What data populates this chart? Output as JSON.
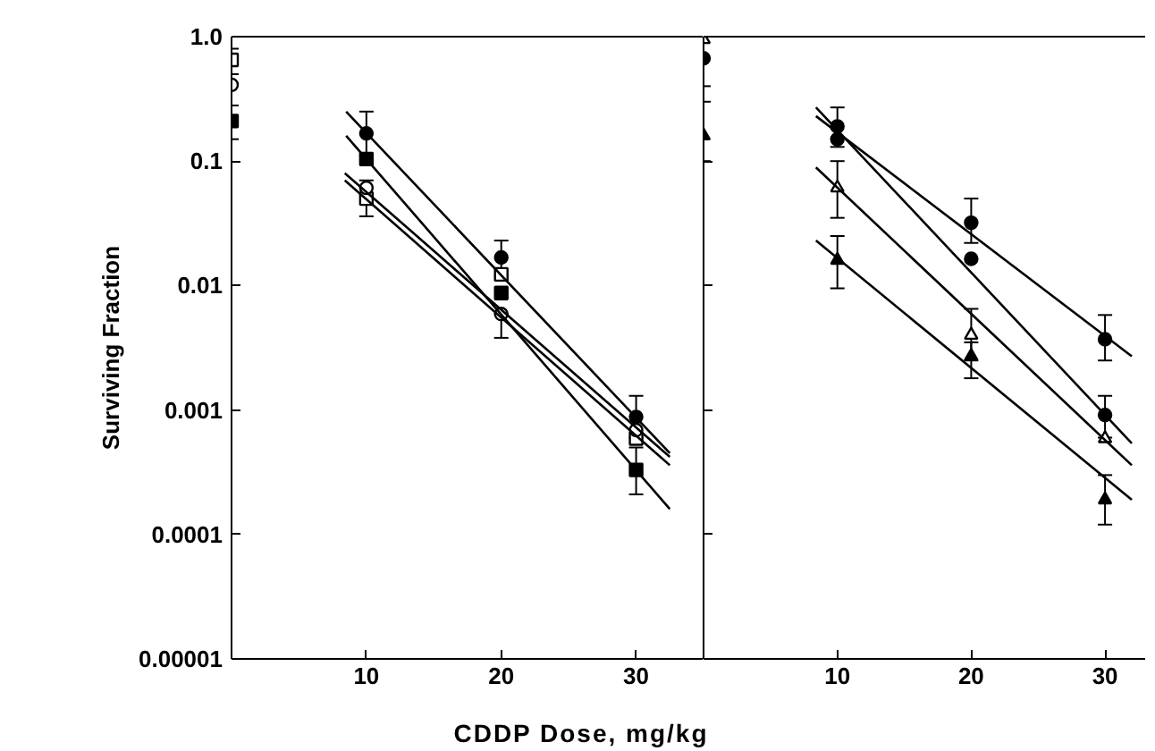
{
  "chart_data": [
    {
      "type": "scatter",
      "ylabel": "Surviving Fraction",
      "xlabel": "CDDP Dose, mg/kg",
      "log": "y",
      "x": [
        0,
        10,
        20,
        30
      ],
      "xlim": [
        0,
        35
      ],
      "xticks": [
        10,
        20,
        30
      ],
      "ylim": [
        1e-05,
        1
      ],
      "yticks": [
        {
          "value": 1,
          "label": "1.0"
        },
        0.1,
        0.01,
        0.001,
        {
          "value": 0.0001,
          "label": "0.0001"
        },
        {
          "value": 1e-05,
          "label": "0.00001"
        }
      ],
      "grid": false,
      "series": [
        {
          "marker": "circle",
          "color": "#000000",
          "values": [
            null,
            0.167,
            0.0168,
            0.00088
          ],
          "errors": [
            null,
            [
              0.11,
              0.25
            ],
            [
              0.012,
              0.023
            ],
            [
              0.0006,
              0.0013
            ]
          ]
        },
        {
          "marker": "square",
          "color": "#000000",
          "values": [
            0.21,
            0.104,
            0.0087,
            0.00033
          ],
          "errors": [
            [
              0.15,
              0.28
            ],
            null,
            null,
            [
              0.00021,
              0.0005
            ]
          ]
        },
        {
          "marker": "square",
          "color": "#ffffff",
          "values": [
            0.65,
            0.05,
            0.0123,
            0.00059
          ],
          "errors": [
            [
              0.5,
              0.8
            ],
            [
              0.036,
              0.07
            ],
            null,
            null
          ]
        },
        {
          "marker": "circle",
          "color": "#ffffff",
          "values": [
            0.41,
            0.061,
            0.0059,
            0.00069
          ],
          "errors": [
            null,
            null,
            [
              0.0038,
              0.0059
            ],
            null
          ]
        },
        {
          "type": "line",
          "color": "#000000",
          "x": [
            8.5,
            32.5
          ],
          "values": [
            0.25,
            0.00045
          ]
        },
        {
          "type": "line",
          "color": "#000000",
          "x": [
            8.5,
            32.5
          ],
          "values": [
            0.16,
            0.00016
          ]
        },
        {
          "type": "line",
          "color": "#000000",
          "x": [
            8.4,
            32.5
          ],
          "values": [
            0.08,
            0.00042
          ]
        },
        {
          "type": "line",
          "color": "#000000",
          "x": [
            8.4,
            32.5
          ],
          "values": [
            0.07,
            0.00036
          ]
        }
      ]
    },
    {
      "type": "scatter",
      "log": "y",
      "x": [
        0,
        10,
        20,
        30
      ],
      "xlim": [
        0,
        33
      ],
      "xticks": [
        10,
        20,
        30
      ],
      "ylim": [
        1e-05,
        1
      ],
      "yticks": [
        1,
        0.1,
        0.01,
        0.001,
        0.0001,
        1e-05
      ],
      "tick_labels": "x",
      "grid": false,
      "series": [
        {
          "marker": "circle",
          "color": "#000000",
          "values": [
            0.67,
            0.19,
            0.0164,
            0.00091
          ],
          "errors": [
            [
              0.4,
              1.0
            ],
            [
              0.13,
              0.27
            ],
            null,
            [
              0.0006,
              0.0013
            ]
          ]
        },
        {
          "marker": "circle",
          "color": "#000000",
          "values": [
            null,
            0.15,
            0.032,
            0.0037
          ],
          "errors": [
            null,
            null,
            [
              0.022,
              0.05
            ],
            [
              0.0025,
              0.0058
            ]
          ]
        },
        {
          "marker": "triangle",
          "color": "#ffffff",
          "values": [
            0.95,
            0.061,
            0.004,
            0.00059
          ],
          "errors": [
            null,
            [
              0.035,
              0.1
            ],
            [
              0.0025,
              0.0065
            ],
            null
          ]
        },
        {
          "marker": "triangle",
          "color": "#000000",
          "values": [
            0.16,
            0.016,
            0.0027,
            0.00019
          ],
          "errors": [
            [
              0.1,
              0.3
            ],
            [
              0.0095,
              0.025
            ],
            [
              0.0018,
              0.0035
            ],
            [
              0.00012,
              0.0003
            ]
          ]
        },
        {
          "type": "line",
          "color": "#000000",
          "x": [
            8.4,
            32
          ],
          "values": [
            0.27,
            0.00054
          ]
        },
        {
          "type": "line",
          "color": "#000000",
          "x": [
            8.4,
            32
          ],
          "values": [
            0.23,
            0.0027
          ]
        },
        {
          "type": "line",
          "color": "#000000",
          "x": [
            8.4,
            32
          ],
          "values": [
            0.089,
            0.00036
          ]
        },
        {
          "type": "line",
          "color": "#000000",
          "x": [
            8.4,
            32
          ],
          "values": [
            0.023,
            0.00019
          ]
        }
      ]
    }
  ]
}
